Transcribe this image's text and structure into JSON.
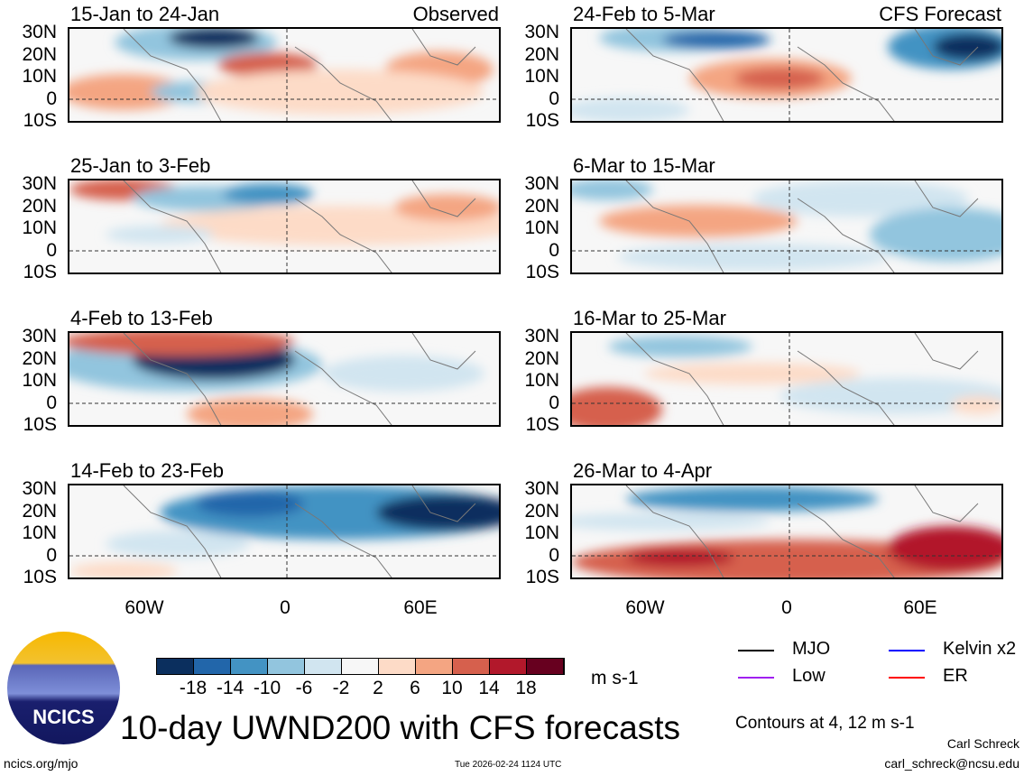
{
  "panels": [
    {
      "title": "15-Jan to 24-Jan",
      "tag": "Observed"
    },
    {
      "title": "24-Feb to 5-Mar",
      "tag": "CFS Forecast"
    },
    {
      "title": "25-Jan to 3-Feb",
      "tag": ""
    },
    {
      "title": "6-Mar to 15-Mar",
      "tag": ""
    },
    {
      "title": "4-Feb to 13-Feb",
      "tag": ""
    },
    {
      "title": "16-Mar to 25-Mar",
      "tag": ""
    },
    {
      "title": "14-Feb to 23-Feb",
      "tag": ""
    },
    {
      "title": "26-Mar to 4-Apr",
      "tag": ""
    }
  ],
  "lat_labels": [
    "30N",
    "20N",
    "10N",
    "0",
    "10S"
  ],
  "lon_labels": [
    "60W",
    "0",
    "60E"
  ],
  "colorbar": {
    "colors": [
      "#0b2f5e",
      "#2266aa",
      "#4393c3",
      "#92c5de",
      "#d1e5f0",
      "#f7f7f7",
      "#fddbc7",
      "#f4a582",
      "#d6604d",
      "#b2182b",
      "#67001f"
    ],
    "labels": [
      "-18",
      "-14",
      "-10",
      "-6",
      "-2",
      "2",
      "6",
      "10",
      "14",
      "18"
    ],
    "units": "m s-1"
  },
  "legend": {
    "items": [
      {
        "label": "MJO",
        "color": "#000000"
      },
      {
        "label": "Kelvin x2",
        "color": "#0000ff"
      },
      {
        "label": "Low",
        "color": "#a020f0"
      },
      {
        "label": "ER",
        "color": "#ff0000"
      }
    ],
    "contours": "Contours at 4, 12 m s-1"
  },
  "logo": "NCICS",
  "title": "10-day UWND200 with CFS forecasts",
  "footer": {
    "url": "ncics.org/mjo",
    "timestamp": "Tue 2026-02-24 1124 UTC",
    "author": "Carl Schreck",
    "email": "carl_schreck@ncsu.edu"
  }
}
